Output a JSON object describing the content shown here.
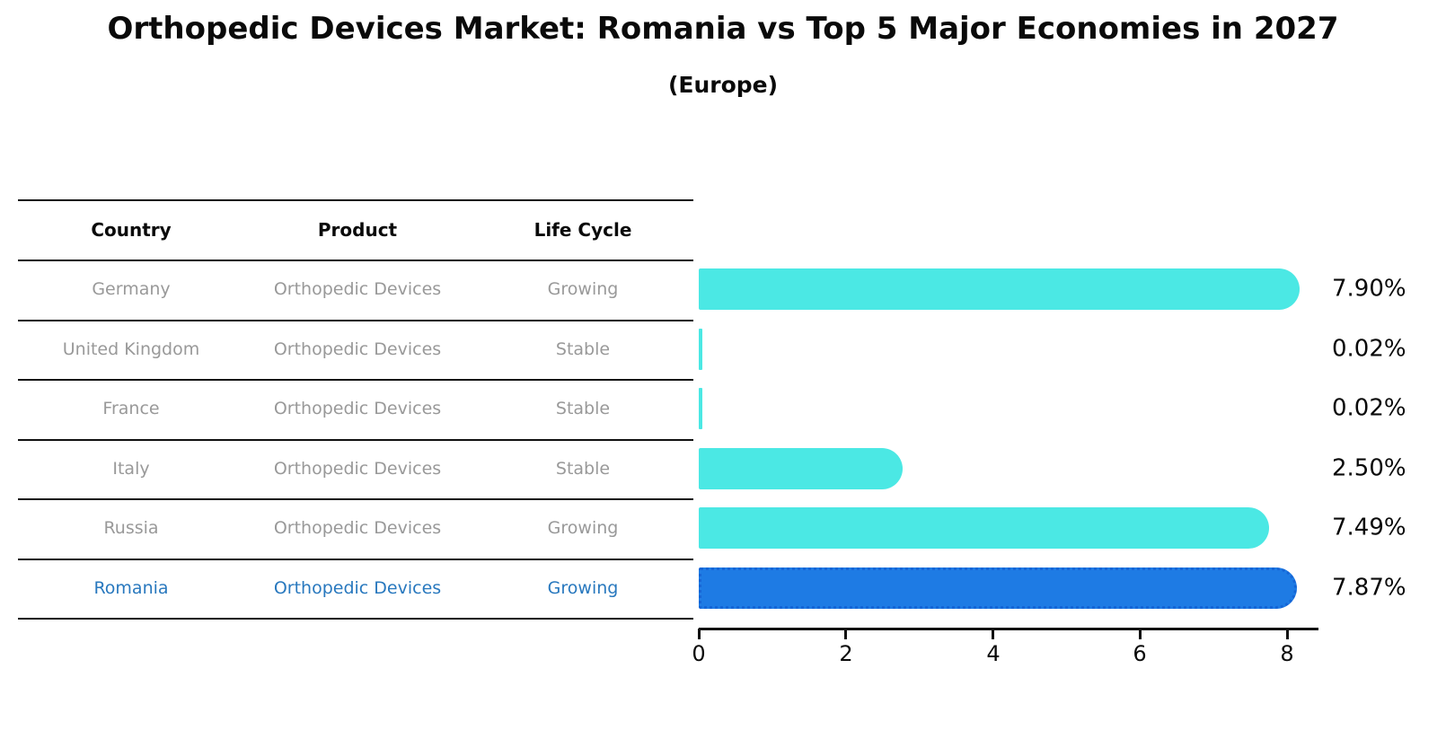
{
  "title": "Orthopedic Devices Market: Romania vs Top 5 Major Economies in 2027",
  "subtitle": "(Europe)",
  "table": {
    "headers": [
      "Country",
      "Product",
      "Life Cycle"
    ],
    "rows": [
      {
        "country": "Germany",
        "product": "Orthopedic Devices",
        "life_cycle": "Growing",
        "highlighted": false
      },
      {
        "country": "United Kingdom",
        "product": "Orthopedic Devices",
        "life_cycle": "Stable",
        "highlighted": false
      },
      {
        "country": "France",
        "product": "Orthopedic Devices",
        "life_cycle": "Stable",
        "highlighted": false
      },
      {
        "country": "Italy",
        "product": "Orthopedic Devices",
        "life_cycle": "Stable",
        "highlighted": false
      },
      {
        "country": "Russia",
        "product": "Orthopedic Devices",
        "life_cycle": "Growing",
        "highlighted": false
      },
      {
        "country": "Romania",
        "product": "Orthopedic Devices",
        "life_cycle": "Growing",
        "highlighted": true
      }
    ]
  },
  "chart_data": {
    "type": "bar",
    "orientation": "horizontal",
    "categories": [
      "Germany",
      "United Kingdom",
      "France",
      "Italy",
      "Russia",
      "Romania"
    ],
    "values": [
      7.9,
      0.02,
      0.02,
      2.5,
      7.49,
      7.87
    ],
    "value_labels": [
      "7.90%",
      "0.02%",
      "0.02%",
      "2.50%",
      "7.49%",
      "7.87%"
    ],
    "x_ticks": [
      "0",
      "2",
      "4",
      "6",
      "8"
    ],
    "x_tick_values": [
      0,
      2,
      4,
      6,
      8
    ],
    "xlim": [
      0,
      8
    ],
    "grid": false,
    "legend": "none",
    "highlight_index": 5,
    "colors": {
      "bar": "#4BE8E4",
      "highlight_bar": "#1E7BE4",
      "highlight_border": "#1565D6",
      "highlight_text": "#2878BE",
      "cell_text": "#999999",
      "axis": "#111111"
    }
  }
}
